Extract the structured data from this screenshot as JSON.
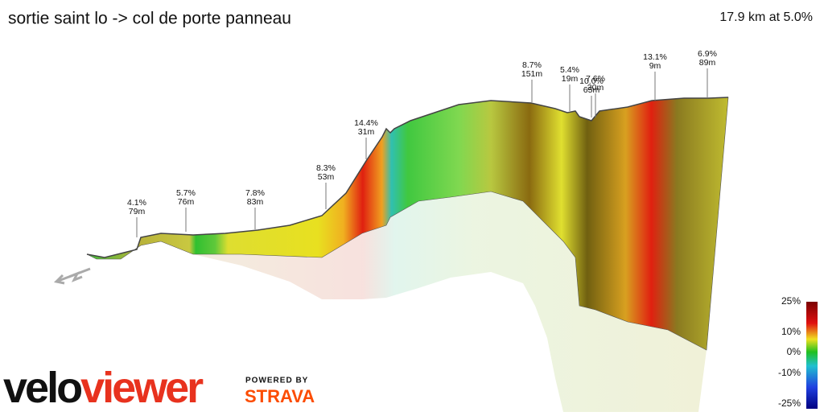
{
  "header": {
    "title": "sortie saint lo -> col de porte panneau",
    "summary": "17.9 km at 5.0%"
  },
  "annotations": [
    {
      "grade": "4.1%",
      "length": "79m"
    },
    {
      "grade": "5.7%",
      "length": "76m"
    },
    {
      "grade": "7.8%",
      "length": "83m"
    },
    {
      "grade": "8.3%",
      "length": "53m"
    },
    {
      "grade": "14.4%",
      "length": "31m"
    },
    {
      "grade": "8.7%",
      "length": "151m"
    },
    {
      "grade": "5.4%",
      "length": "19m"
    },
    {
      "grade": "10.0%",
      "length": "65m"
    },
    {
      "grade": "7.6%",
      "length": "30m"
    },
    {
      "grade": "13.1%",
      "length": "9m"
    },
    {
      "grade": "6.9%",
      "length": "89m"
    }
  ],
  "legend": {
    "labels": [
      "25%",
      "10%",
      "0%",
      "-10%",
      "-25%"
    ]
  },
  "branding": {
    "logo_dark": "velo",
    "logo_red": "viewer",
    "powered_by": "POWERED BY",
    "partner": "STRAVA"
  }
}
